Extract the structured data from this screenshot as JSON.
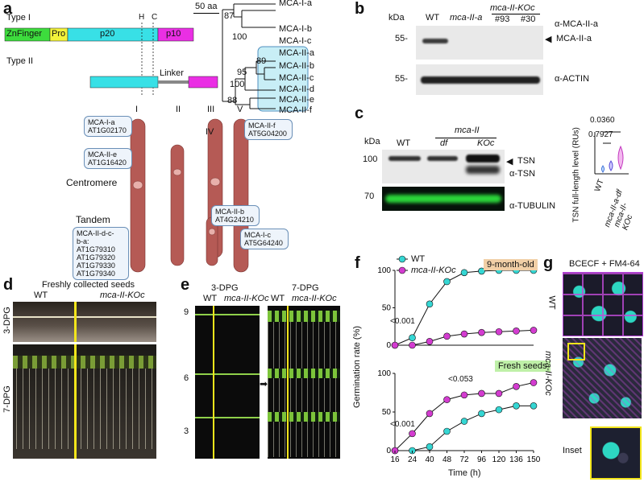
{
  "panels": {
    "a": "a",
    "b": "b",
    "c": "c",
    "d": "d",
    "e": "e",
    "f": "f",
    "g": "g"
  },
  "panel_a": {
    "type_i": "Type I",
    "type_ii": "Type II",
    "marker_h": "H",
    "marker_c": "C",
    "scale": "50 aa",
    "domains": [
      "ZnFinger",
      "Pro",
      "p20",
      "p10"
    ],
    "linker": "Linker",
    "tree_leaves": [
      "MCA-I-a",
      "MCA-I-b",
      "MCA-I-c",
      "MCA-II-a",
      "MCA-II-b",
      "MCA-II-c",
      "MCA-II-d",
      "MCA-II-e",
      "MCA-II-f"
    ],
    "bootstrap": [
      "87",
      "100",
      "89",
      "95",
      "100",
      "88"
    ],
    "chromosomes": [
      "I",
      "II",
      "III",
      "IV",
      "V"
    ],
    "centromere": "Centromere",
    "tandem": "Tandem",
    "loci": {
      "i_a": [
        "MCA-I-a",
        "AT1G02170"
      ],
      "ii_e": [
        "MCA-II-e",
        "AT1G16420"
      ],
      "ii_f": [
        "MCA-II-f",
        "AT5G04200"
      ],
      "ii_b": [
        "MCA-II-b",
        "AT4G24210"
      ],
      "i_c": [
        "MCA-I-c",
        "AT5G64240"
      ],
      "tandem": [
        "MCA-II-d-c-",
        "b-a:",
        "AT1G79310",
        "AT1G79320",
        "AT1G79330",
        "AT1G79340"
      ]
    },
    "colors": {
      "znfinger": "#3ddc3d",
      "pro": "#f3f33a",
      "p20": "#38e0e6",
      "p10": "#ea2fe4",
      "chrom": "#b55a55"
    }
  },
  "panel_b": {
    "kda": "kDa",
    "lanes": [
      "WT",
      "mca-II-a",
      "#93",
      "#30"
    ],
    "koc_header": "mca-II-KOc",
    "mw": [
      "55-",
      "55-"
    ],
    "antibodies": [
      "α-MCA-II-a",
      "α-ACTIN"
    ],
    "band_label": "MCA-II-a"
  },
  "panel_c": {
    "kda": "kDa",
    "group_header": "mca-II",
    "lanes": [
      "WT",
      "df",
      "KOc"
    ],
    "mw": [
      "100",
      "70"
    ],
    "band_label": "TSN",
    "antibodies": [
      "α-TSN",
      "α-TUBULIN"
    ],
    "plot_ylabel": "TSN full-length level (RUs)",
    "plot_xlabels": [
      "WT",
      "mca-II-a-df",
      "mca-II-KOc"
    ],
    "pvalues": [
      "0.0360",
      "0.7927"
    ]
  },
  "panel_d": {
    "title": "Freshly collected seeds",
    "wt": "WT",
    "ko": "mca-II-KOc",
    "rows": [
      "3-DPG",
      "7-DPG"
    ]
  },
  "panel_e": {
    "left_title": "3-DPG",
    "right_title": "7-DPG",
    "wt": "WT",
    "ko": "mca-II-KOc",
    "rows": [
      "9",
      "6",
      "3"
    ]
  },
  "panel_f": {
    "chart_data": [
      {
        "type": "line",
        "title": "9-month-old",
        "x": [
          16,
          24,
          40,
          48,
          72,
          96,
          120,
          136,
          150
        ],
        "xlabel": "Time (h)",
        "ylabel": "Germination rate (%)",
        "ylim": [
          0,
          100
        ],
        "annotation": "<0.001",
        "legend": "top-left",
        "series": [
          {
            "name": "WT",
            "color": "#35d6d3",
            "values": [
              0,
              10,
              55,
              85,
              97,
              99,
              100,
              100,
              100
            ]
          },
          {
            "name": "mca-II-KOc",
            "color": "#d33cd0",
            "values": [
              0,
              0,
              5,
              12,
              15,
              17,
              18,
              19,
              20
            ]
          }
        ]
      },
      {
        "type": "line",
        "title": "Fresh seeds",
        "x": [
          16,
          24,
          40,
          48,
          72,
          96,
          120,
          136,
          150
        ],
        "xlabel": "Time (h)",
        "ylabel": "Germination rate (%)",
        "ylim": [
          0,
          100
        ],
        "annotations": [
          "<0.001",
          "<0.053"
        ],
        "series": [
          {
            "name": "WT",
            "color": "#35d6d3",
            "values": [
              0,
              0,
              5,
              25,
              38,
              48,
              53,
              58,
              58
            ]
          },
          {
            "name": "mca-II-KOc",
            "color": "#d33cd0",
            "values": [
              0,
              22,
              48,
              66,
              72,
              74,
              74,
              83,
              88
            ]
          }
        ]
      }
    ],
    "yticks": [
      "0",
      "50",
      "100"
    ],
    "xticks": [
      "16",
      "24",
      "40",
      "48",
      "72",
      "96",
      "120",
      "136",
      "150"
    ]
  },
  "panel_g": {
    "title": "BCECF + FM4-64",
    "rows": [
      "WT",
      "mca-II-KOc",
      "Inset"
    ]
  }
}
